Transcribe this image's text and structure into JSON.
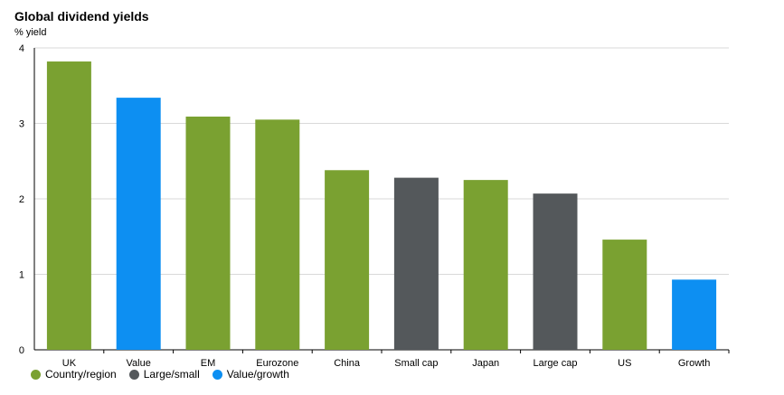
{
  "chart_data": {
    "type": "bar",
    "title": "Global dividend yields",
    "ylabel": "% yield",
    "ylim": [
      0,
      4
    ],
    "yticks": [
      0,
      1,
      2,
      3,
      4
    ],
    "grid": true,
    "categories": [
      "UK",
      "Value",
      "EM",
      "Eurozone",
      "China",
      "Small cap",
      "Japan",
      "Large cap",
      "US",
      "Growth"
    ],
    "values": [
      3.82,
      3.34,
      3.09,
      3.05,
      2.38,
      2.28,
      2.25,
      2.07,
      1.46,
      0.93
    ],
    "groups": [
      "Country/region",
      "Value/growth",
      "Country/region",
      "Country/region",
      "Country/region",
      "Large/small",
      "Country/region",
      "Large/small",
      "Country/region",
      "Value/growth"
    ],
    "legend": [
      {
        "name": "Country/region",
        "color": "#7aa131"
      },
      {
        "name": "Large/small",
        "color": "#54585b"
      },
      {
        "name": "Value/growth",
        "color": "#0d8ff2"
      }
    ],
    "legend_position": "bottom-left"
  }
}
